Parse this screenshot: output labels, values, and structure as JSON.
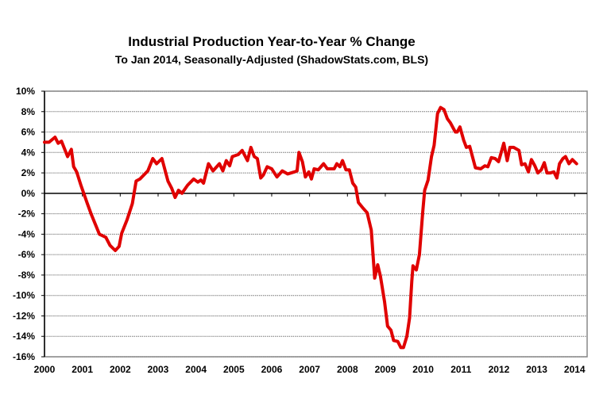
{
  "chart_data": {
    "type": "line",
    "title": "Industrial Production Year-to-Year % Change",
    "subtitle": "To Jan 2014, Seasonally-Adjusted (ShadowStats.com, BLS)",
    "xlabel": "",
    "ylabel": "",
    "xlim": [
      2000,
      2014.33
    ],
    "ylim": [
      -16,
      10
    ],
    "x_ticks": [
      "2000",
      "2001",
      "2002",
      "2003",
      "2004",
      "2005",
      "2006",
      "2007",
      "2008",
      "2009",
      "2010",
      "2011",
      "2012",
      "2013",
      "2014"
    ],
    "y_ticks": [
      "10%",
      "8%",
      "6%",
      "4%",
      "2%",
      "0%",
      "-2%",
      "-4%",
      "-6%",
      "-8%",
      "-10%",
      "-12%",
      "-14%",
      "-16%"
    ],
    "grid": true,
    "series": [
      {
        "name": "Industrial Production Yr/Yr %",
        "color": "#e00000",
        "points": [
          [
            2000.0,
            5.0
          ],
          [
            2000.12,
            5.0
          ],
          [
            2000.28,
            5.5
          ],
          [
            2000.36,
            4.9
          ],
          [
            2000.45,
            5.1
          ],
          [
            2000.61,
            3.6
          ],
          [
            2000.71,
            4.3
          ],
          [
            2000.77,
            2.6
          ],
          [
            2000.85,
            2.1
          ],
          [
            2000.96,
            0.8
          ],
          [
            2001.13,
            -1.0
          ],
          [
            2001.24,
            -2.1
          ],
          [
            2001.45,
            -4.0
          ],
          [
            2001.62,
            -4.3
          ],
          [
            2001.73,
            -5.1
          ],
          [
            2001.87,
            -5.6
          ],
          [
            2001.97,
            -5.2
          ],
          [
            2002.04,
            -3.9
          ],
          [
            2002.18,
            -2.6
          ],
          [
            2002.32,
            -1.0
          ],
          [
            2002.42,
            1.2
          ],
          [
            2002.52,
            1.4
          ],
          [
            2002.73,
            2.2
          ],
          [
            2002.86,
            3.4
          ],
          [
            2002.96,
            2.9
          ],
          [
            2003.1,
            3.4
          ],
          [
            2003.26,
            1.2
          ],
          [
            2003.36,
            0.5
          ],
          [
            2003.45,
            -0.4
          ],
          [
            2003.54,
            0.3
          ],
          [
            2003.63,
            0.0
          ],
          [
            2003.78,
            0.8
          ],
          [
            2003.94,
            1.4
          ],
          [
            2004.05,
            1.1
          ],
          [
            2004.13,
            1.3
          ],
          [
            2004.2,
            1.0
          ],
          [
            2004.33,
            2.9
          ],
          [
            2004.45,
            2.2
          ],
          [
            2004.62,
            2.9
          ],
          [
            2004.71,
            2.2
          ],
          [
            2004.8,
            3.2
          ],
          [
            2004.89,
            2.7
          ],
          [
            2004.96,
            3.6
          ],
          [
            2005.12,
            3.8
          ],
          [
            2005.22,
            4.2
          ],
          [
            2005.36,
            3.2
          ],
          [
            2005.45,
            4.5
          ],
          [
            2005.54,
            3.6
          ],
          [
            2005.62,
            3.4
          ],
          [
            2005.71,
            1.5
          ],
          [
            2005.78,
            1.8
          ],
          [
            2005.88,
            2.6
          ],
          [
            2006.0,
            2.4
          ],
          [
            2006.14,
            1.6
          ],
          [
            2006.28,
            2.2
          ],
          [
            2006.42,
            1.9
          ],
          [
            2006.6,
            2.1
          ],
          [
            2006.67,
            2.2
          ],
          [
            2006.72,
            4.0
          ],
          [
            2006.81,
            3.1
          ],
          [
            2006.89,
            1.6
          ],
          [
            2006.98,
            2.1
          ],
          [
            2007.05,
            1.4
          ],
          [
            2007.12,
            2.4
          ],
          [
            2007.23,
            2.3
          ],
          [
            2007.37,
            2.9
          ],
          [
            2007.47,
            2.4
          ],
          [
            2007.65,
            2.4
          ],
          [
            2007.72,
            2.9
          ],
          [
            2007.8,
            2.6
          ],
          [
            2007.87,
            3.2
          ],
          [
            2007.96,
            2.3
          ],
          [
            2008.05,
            2.3
          ],
          [
            2008.14,
            1.0
          ],
          [
            2008.22,
            0.6
          ],
          [
            2008.29,
            -0.9
          ],
          [
            2008.4,
            -1.4
          ],
          [
            2008.52,
            -1.9
          ],
          [
            2008.63,
            -3.6
          ],
          [
            2008.72,
            -8.3
          ],
          [
            2008.8,
            -7.0
          ],
          [
            2008.87,
            -8.1
          ],
          [
            2008.98,
            -10.6
          ],
          [
            2009.06,
            -13.0
          ],
          [
            2009.15,
            -13.4
          ],
          [
            2009.22,
            -14.4
          ],
          [
            2009.33,
            -14.5
          ],
          [
            2009.41,
            -15.1
          ],
          [
            2009.48,
            -15.1
          ],
          [
            2009.57,
            -14.0
          ],
          [
            2009.64,
            -12.2
          ],
          [
            2009.7,
            -8.6
          ],
          [
            2009.73,
            -7.1
          ],
          [
            2009.82,
            -7.5
          ],
          [
            2009.9,
            -6.0
          ],
          [
            2009.99,
            -1.8
          ],
          [
            2010.04,
            0.3
          ],
          [
            2010.13,
            1.3
          ],
          [
            2010.22,
            3.6
          ],
          [
            2010.29,
            4.7
          ],
          [
            2010.38,
            7.8
          ],
          [
            2010.46,
            8.4
          ],
          [
            2010.55,
            8.2
          ],
          [
            2010.64,
            7.3
          ],
          [
            2010.72,
            6.9
          ],
          [
            2010.85,
            6.0
          ],
          [
            2010.9,
            6.0
          ],
          [
            2010.97,
            6.5
          ],
          [
            2011.07,
            5.2
          ],
          [
            2011.14,
            4.5
          ],
          [
            2011.23,
            4.6
          ],
          [
            2011.38,
            2.5
          ],
          [
            2011.52,
            2.4
          ],
          [
            2011.63,
            2.7
          ],
          [
            2011.71,
            2.6
          ],
          [
            2011.8,
            3.5
          ],
          [
            2011.9,
            3.4
          ],
          [
            2011.99,
            3.1
          ],
          [
            2012.13,
            4.9
          ],
          [
            2012.22,
            3.2
          ],
          [
            2012.29,
            4.5
          ],
          [
            2012.39,
            4.5
          ],
          [
            2012.53,
            4.2
          ],
          [
            2012.6,
            2.8
          ],
          [
            2012.69,
            2.9
          ],
          [
            2012.78,
            2.1
          ],
          [
            2012.86,
            3.3
          ],
          [
            2012.95,
            2.7
          ],
          [
            2013.03,
            2.0
          ],
          [
            2013.12,
            2.3
          ],
          [
            2013.2,
            3.0
          ],
          [
            2013.27,
            2.0
          ],
          [
            2013.36,
            2.0
          ],
          [
            2013.45,
            2.1
          ],
          [
            2013.53,
            1.5
          ],
          [
            2013.6,
            2.9
          ],
          [
            2013.69,
            3.4
          ],
          [
            2013.76,
            3.6
          ],
          [
            2013.85,
            2.9
          ],
          [
            2013.94,
            3.3
          ],
          [
            2014.05,
            2.9
          ]
        ]
      }
    ]
  }
}
